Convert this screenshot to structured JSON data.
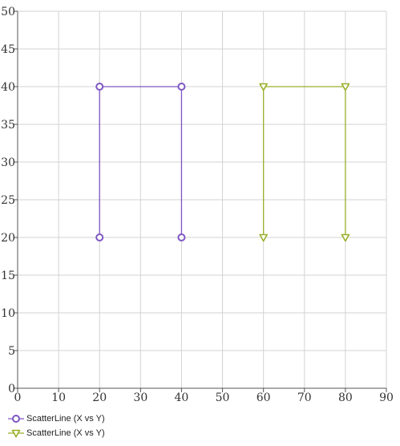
{
  "chart_data": {
    "type": "scatter",
    "xlim": [
      0,
      90
    ],
    "ylim": [
      0,
      50
    ],
    "xticks": [
      0,
      10,
      20,
      30,
      40,
      50,
      60,
      70,
      80,
      90
    ],
    "yticks": [
      0,
      5,
      10,
      15,
      20,
      25,
      30,
      35,
      40,
      45,
      50
    ],
    "grid": true,
    "legend_position": "bottom-left",
    "series": [
      {
        "name": "ScatterLine (X vs Y)",
        "marker": "circle",
        "color": "#7e57c2",
        "points": [
          [
            20,
            20
          ],
          [
            20,
            40
          ],
          [
            40,
            40
          ],
          [
            40,
            20
          ]
        ]
      },
      {
        "name": "ScatterLine (X vs Y)",
        "marker": "triangle-down",
        "color": "#9aaf29",
        "points": [
          [
            60,
            20
          ],
          [
            60,
            40
          ],
          [
            80,
            40
          ],
          [
            80,
            20
          ]
        ]
      }
    ]
  }
}
